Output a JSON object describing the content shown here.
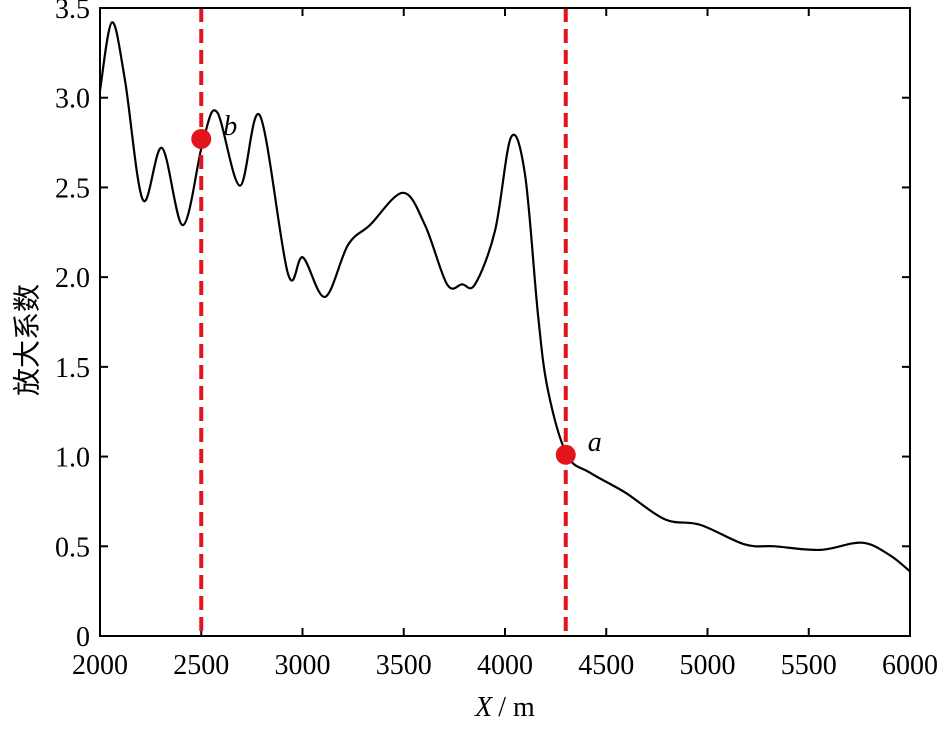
{
  "chart_data": {
    "type": "line",
    "ylabel": "放大系数",
    "xlabel": {
      "symbol": "X",
      "unit": "/ m"
    },
    "x": [
      2000,
      2059,
      2123,
      2212,
      2306,
      2410,
      2509,
      2578,
      2691,
      2790,
      2928,
      3002,
      3111,
      3225,
      3333,
      3496,
      3605,
      3714,
      3788,
      3852,
      3951,
      4030,
      4099,
      4163,
      4212,
      4306,
      4420,
      4593,
      4790,
      4963,
      5185,
      5333,
      5556,
      5763,
      5901,
      6000
    ],
    "series": [
      {
        "color": "#000000",
        "values": [
          3.04,
          3.42,
          3.1,
          2.43,
          2.72,
          2.29,
          2.76,
          2.92,
          2.51,
          2.9,
          2.02,
          2.11,
          1.89,
          2.18,
          2.29,
          2.47,
          2.29,
          1.96,
          1.96,
          1.96,
          2.26,
          2.78,
          2.57,
          1.79,
          1.37,
          1.01,
          0.91,
          0.8,
          0.65,
          0.62,
          0.51,
          0.5,
          0.48,
          0.52,
          0.45,
          0.36
        ]
      }
    ],
    "markers": [
      {
        "x": 2500,
        "y": 2.77,
        "label": "b"
      },
      {
        "x": 4300,
        "y": 1.01,
        "label": "a"
      }
    ],
    "marker_color": "#e3141c",
    "xlim": [
      2000,
      6000
    ],
    "xticks": [
      2000,
      2500,
      3000,
      3500,
      4000,
      4500,
      5000,
      5500,
      6000
    ],
    "ylim": [
      0,
      3.5
    ],
    "yticks": [
      0,
      0.5,
      {
        "value": 1,
        "label": "1.0"
      },
      1.5,
      {
        "value": 2,
        "label": "2.0"
      },
      2.5,
      {
        "value": 3,
        "label": "3.0"
      },
      3.5
    ]
  }
}
